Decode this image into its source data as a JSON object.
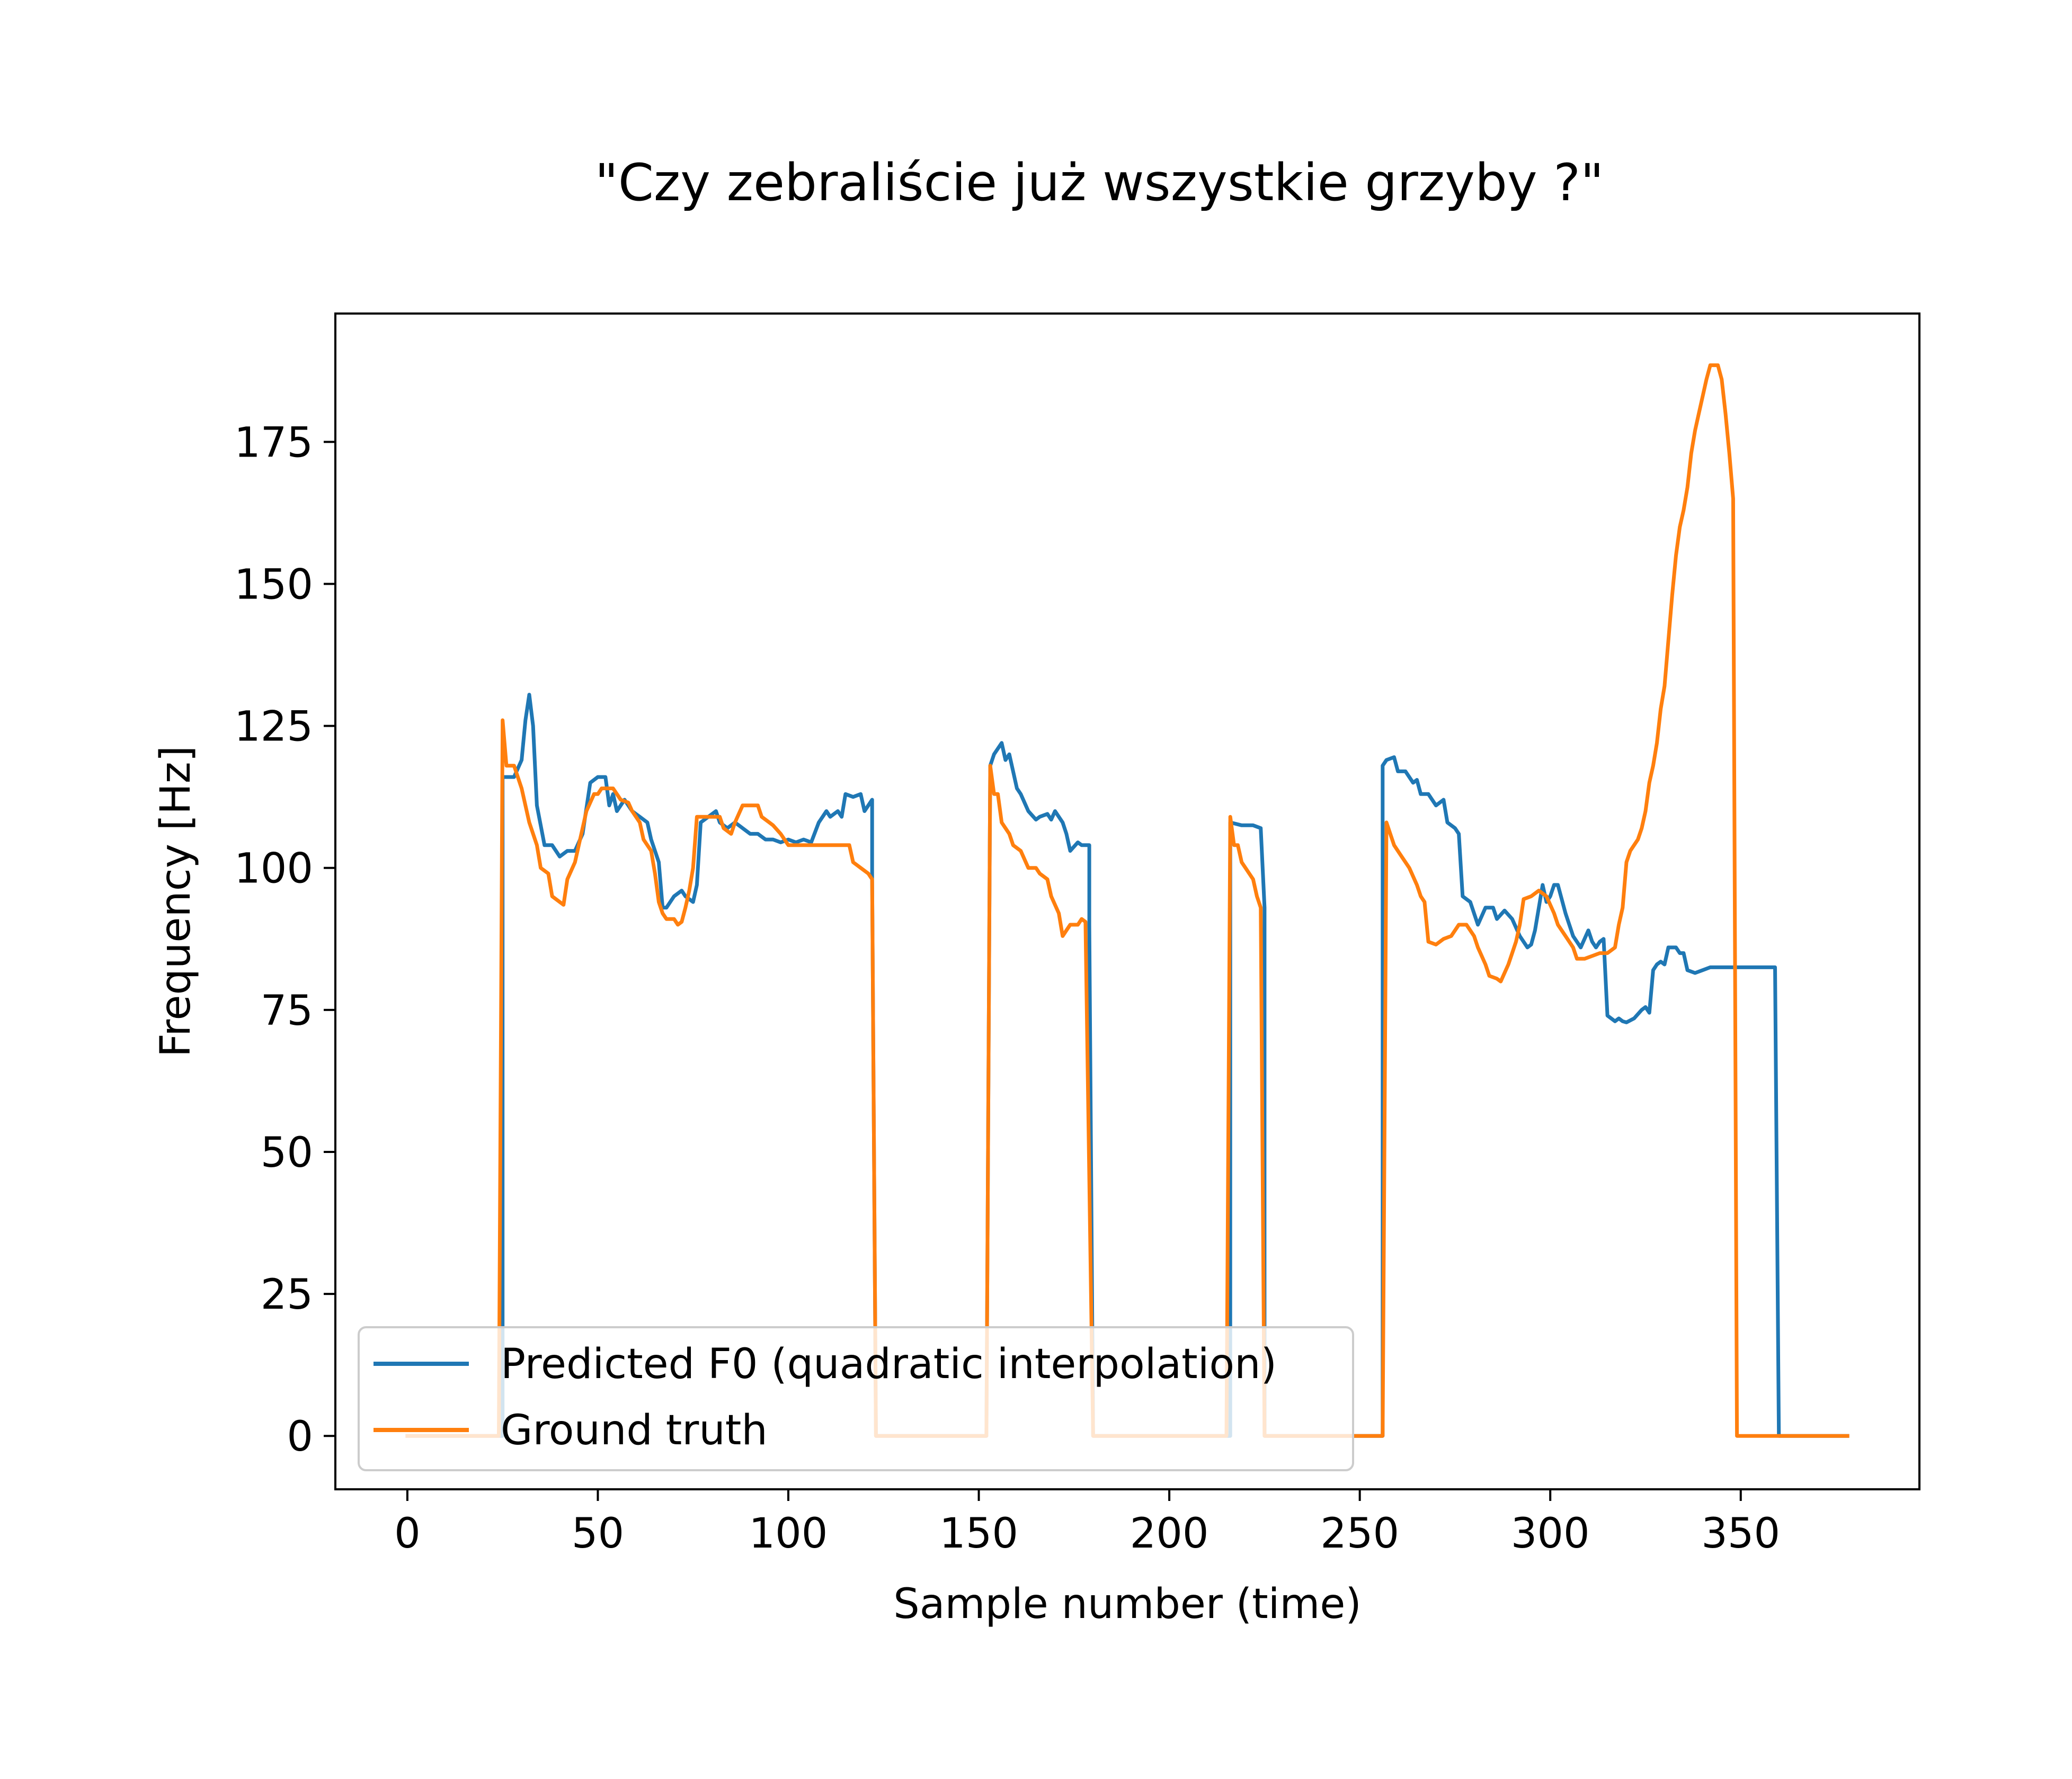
{
  "chart_data": {
    "type": "line",
    "title": "\"Czy zebraliście już wszystkie grzyby ?\"",
    "xlabel": "Sample number (time)",
    "ylabel": "Frequency [Hz]",
    "xlim": [
      -18.9,
      396.9
    ],
    "ylim": [
      -9.4,
      197.6
    ],
    "xticks": [
      0,
      50,
      100,
      150,
      200,
      250,
      300,
      350
    ],
    "yticks": [
      0,
      25,
      50,
      75,
      100,
      125,
      150,
      175
    ],
    "grid": false,
    "legend_position": "lower-left",
    "series": [
      {
        "name": "Predicted F0 (quadratic interpolation)",
        "color": "#1f77b4",
        "points": [
          [
            0,
            0
          ],
          [
            25,
            0
          ],
          [
            25,
            116
          ],
          [
            28,
            116
          ],
          [
            30,
            119
          ],
          [
            31,
            126
          ],
          [
            32,
            130.5
          ],
          [
            33,
            125
          ],
          [
            34,
            111
          ],
          [
            36,
            104
          ],
          [
            38,
            104
          ],
          [
            40,
            102
          ],
          [
            42,
            103
          ],
          [
            44,
            103
          ],
          [
            46,
            106
          ],
          [
            48,
            115
          ],
          [
            50,
            116
          ],
          [
            52,
            116
          ],
          [
            53,
            111
          ],
          [
            54,
            113
          ],
          [
            55,
            110
          ],
          [
            57,
            112
          ],
          [
            59,
            110
          ],
          [
            61,
            109
          ],
          [
            63,
            108
          ],
          [
            64,
            105
          ],
          [
            66,
            101
          ],
          [
            67,
            93
          ],
          [
            68,
            93
          ],
          [
            70,
            95
          ],
          [
            72,
            96
          ],
          [
            73,
            95
          ],
          [
            75,
            94
          ],
          [
            76,
            97
          ],
          [
            77,
            108
          ],
          [
            79,
            109
          ],
          [
            81,
            110
          ],
          [
            82,
            108
          ],
          [
            84,
            107
          ],
          [
            86,
            108
          ],
          [
            88,
            107
          ],
          [
            90,
            106
          ],
          [
            92,
            106
          ],
          [
            94,
            105
          ],
          [
            96,
            105
          ],
          [
            98,
            104.5
          ],
          [
            100,
            105
          ],
          [
            102,
            104.5
          ],
          [
            104,
            105
          ],
          [
            106,
            104.5
          ],
          [
            108,
            108
          ],
          [
            110,
            110
          ],
          [
            111,
            109
          ],
          [
            113,
            110
          ],
          [
            114,
            109
          ],
          [
            115,
            113
          ],
          [
            117,
            112.5
          ],
          [
            119,
            113
          ],
          [
            120,
            110
          ],
          [
            122,
            112
          ],
          [
            122,
            98
          ],
          [
            123,
            0
          ],
          [
            152,
            0
          ],
          [
            153,
            118
          ],
          [
            154,
            120
          ],
          [
            156,
            122
          ],
          [
            157,
            119
          ],
          [
            158,
            120
          ],
          [
            159,
            117
          ],
          [
            160,
            114
          ],
          [
            161,
            113
          ],
          [
            163,
            110
          ],
          [
            165,
            108.5
          ],
          [
            166,
            109
          ],
          [
            168,
            109.5
          ],
          [
            169,
            108.5
          ],
          [
            170,
            110
          ],
          [
            172,
            108
          ],
          [
            173,
            106
          ],
          [
            174,
            103
          ],
          [
            176,
            104.5
          ],
          [
            177,
            104
          ],
          [
            179,
            104
          ],
          [
            179,
            90
          ],
          [
            180,
            0
          ],
          [
            216,
            0
          ],
          [
            216,
            108
          ],
          [
            219,
            107.5
          ],
          [
            222,
            107.5
          ],
          [
            224,
            107
          ],
          [
            225,
            93
          ],
          [
            225,
            0
          ],
          [
            256,
            0
          ],
          [
            256,
            118
          ],
          [
            257,
            119
          ],
          [
            259,
            119.5
          ],
          [
            260,
            117
          ],
          [
            262,
            117
          ],
          [
            264,
            115
          ],
          [
            265,
            115.5
          ],
          [
            266,
            113
          ],
          [
            268,
            113
          ],
          [
            270,
            111
          ],
          [
            272,
            112
          ],
          [
            273,
            108
          ],
          [
            275,
            107
          ],
          [
            276,
            106
          ],
          [
            277,
            95
          ],
          [
            279,
            94
          ],
          [
            281,
            90
          ],
          [
            283,
            93
          ],
          [
            285,
            93
          ],
          [
            286,
            91
          ],
          [
            288,
            92.5
          ],
          [
            290,
            91
          ],
          [
            292,
            88
          ],
          [
            294,
            86
          ],
          [
            295,
            86.5
          ],
          [
            296,
            89
          ],
          [
            297,
            93
          ],
          [
            298,
            97
          ],
          [
            299,
            94
          ],
          [
            300,
            95
          ],
          [
            301,
            97
          ],
          [
            302,
            97
          ],
          [
            304,
            92
          ],
          [
            306,
            88
          ],
          [
            308,
            86
          ],
          [
            310,
            89
          ],
          [
            311,
            87
          ],
          [
            312,
            86
          ],
          [
            313,
            87
          ],
          [
            314,
            87.5
          ],
          [
            315,
            74
          ],
          [
            317,
            73
          ],
          [
            318,
            73.5
          ],
          [
            319,
            73
          ],
          [
            320,
            72.8
          ],
          [
            322,
            73.5
          ],
          [
            324,
            75
          ],
          [
            325,
            75.5
          ],
          [
            326,
            74.5
          ],
          [
            327,
            82
          ],
          [
            328,
            83
          ],
          [
            329,
            83.5
          ],
          [
            330,
            83
          ],
          [
            331,
            86
          ],
          [
            333,
            86
          ],
          [
            334,
            85
          ],
          [
            335,
            85
          ],
          [
            336,
            82
          ],
          [
            338,
            81.5
          ],
          [
            340,
            82
          ],
          [
            342,
            82.5
          ],
          [
            343,
            82.5
          ],
          [
            345,
            82.5
          ],
          [
            350,
            82.5
          ],
          [
            359,
            82.5
          ],
          [
            360,
            0
          ],
          [
            378,
            0
          ]
        ]
      },
      {
        "name": "Ground truth",
        "color": "#ff7f0e",
        "points": [
          [
            0,
            0
          ],
          [
            24,
            0
          ],
          [
            25,
            126
          ],
          [
            26,
            118
          ],
          [
            28,
            118
          ],
          [
            30,
            114
          ],
          [
            31,
            111
          ],
          [
            32,
            108
          ],
          [
            34,
            104
          ],
          [
            35,
            100
          ],
          [
            37,
            99
          ],
          [
            38,
            95
          ],
          [
            40,
            94
          ],
          [
            41,
            93.5
          ],
          [
            42,
            98
          ],
          [
            44,
            101
          ],
          [
            45,
            104
          ],
          [
            47,
            110
          ],
          [
            49,
            113
          ],
          [
            50,
            113
          ],
          [
            51,
            114
          ],
          [
            54,
            114
          ],
          [
            56,
            112
          ],
          [
            58,
            111.5
          ],
          [
            59,
            110
          ],
          [
            60,
            109
          ],
          [
            61,
            108
          ],
          [
            62,
            105
          ],
          [
            64,
            103
          ],
          [
            65,
            99
          ],
          [
            66,
            94
          ],
          [
            67,
            92
          ],
          [
            68,
            91
          ],
          [
            70,
            91
          ],
          [
            71,
            90
          ],
          [
            72,
            90.5
          ],
          [
            73,
            93
          ],
          [
            74,
            96
          ],
          [
            75,
            100
          ],
          [
            76,
            109
          ],
          [
            78,
            109
          ],
          [
            80,
            109
          ],
          [
            82,
            109
          ],
          [
            83,
            107
          ],
          [
            85,
            106
          ],
          [
            86,
            108
          ],
          [
            88,
            111
          ],
          [
            90,
            111
          ],
          [
            92,
            111
          ],
          [
            93,
            109
          ],
          [
            95,
            108
          ],
          [
            96,
            107.5
          ],
          [
            98,
            106
          ],
          [
            99,
            105
          ],
          [
            100,
            104
          ],
          [
            102,
            104
          ],
          [
            104,
            104
          ],
          [
            106,
            104
          ],
          [
            108,
            104
          ],
          [
            110,
            104
          ],
          [
            112,
            104
          ],
          [
            114,
            104
          ],
          [
            116,
            104
          ],
          [
            117,
            101
          ],
          [
            119,
            100
          ],
          [
            121,
            99
          ],
          [
            122,
            98
          ],
          [
            123,
            0
          ],
          [
            152,
            0
          ],
          [
            153,
            118
          ],
          [
            154,
            113
          ],
          [
            155,
            113
          ],
          [
            156,
            108
          ],
          [
            158,
            106
          ],
          [
            159,
            104
          ],
          [
            161,
            103
          ],
          [
            163,
            100
          ],
          [
            165,
            100
          ],
          [
            166,
            99
          ],
          [
            168,
            98
          ],
          [
            169,
            95
          ],
          [
            171,
            92
          ],
          [
            172,
            88
          ],
          [
            173,
            89
          ],
          [
            174,
            90
          ],
          [
            176,
            90
          ],
          [
            177,
            91
          ],
          [
            178,
            90.5
          ],
          [
            180,
            0
          ],
          [
            215,
            0
          ],
          [
            216,
            109
          ],
          [
            217,
            104
          ],
          [
            218,
            104
          ],
          [
            219,
            101
          ],
          [
            220,
            100
          ],
          [
            222,
            98
          ],
          [
            223,
            95
          ],
          [
            224,
            93
          ],
          [
            225,
            0
          ],
          [
            256,
            0
          ],
          [
            257,
            108
          ],
          [
            258,
            106
          ],
          [
            259,
            104
          ],
          [
            261,
            102
          ],
          [
            263,
            100
          ],
          [
            265,
            97
          ],
          [
            266,
            95
          ],
          [
            267,
            94
          ],
          [
            268,
            87
          ],
          [
            270,
            86.5
          ],
          [
            272,
            87.5
          ],
          [
            274,
            88
          ],
          [
            276,
            90
          ],
          [
            278,
            90
          ],
          [
            280,
            88
          ],
          [
            281,
            86
          ],
          [
            283,
            83
          ],
          [
            284,
            81
          ],
          [
            286,
            80.5
          ],
          [
            287,
            80
          ],
          [
            289,
            83
          ],
          [
            290,
            85
          ],
          [
            291,
            87
          ],
          [
            292,
            90
          ],
          [
            293,
            94.5
          ],
          [
            295,
            95
          ],
          [
            297,
            96
          ],
          [
            299,
            95
          ],
          [
            301,
            92
          ],
          [
            302,
            90
          ],
          [
            304,
            88
          ],
          [
            306,
            86
          ],
          [
            307,
            84
          ],
          [
            309,
            84
          ],
          [
            311,
            84.5
          ],
          [
            313,
            85
          ],
          [
            315,
            85
          ],
          [
            317,
            86
          ],
          [
            318,
            90
          ],
          [
            319,
            93
          ],
          [
            320,
            101
          ],
          [
            321,
            103
          ],
          [
            322,
            104
          ],
          [
            323,
            105
          ],
          [
            324,
            107
          ],
          [
            325,
            110
          ],
          [
            326,
            115
          ],
          [
            327,
            118
          ],
          [
            328,
            122
          ],
          [
            329,
            128
          ],
          [
            330,
            132
          ],
          [
            331,
            140
          ],
          [
            332,
            148
          ],
          [
            333,
            155
          ],
          [
            334,
            160
          ],
          [
            335,
            163
          ],
          [
            336,
            167
          ],
          [
            337,
            173
          ],
          [
            338,
            177
          ],
          [
            339,
            180
          ],
          [
            340,
            183
          ],
          [
            341,
            186
          ],
          [
            342,
            188.5
          ],
          [
            343,
            188.5
          ],
          [
            344,
            188.5
          ],
          [
            345,
            186
          ],
          [
            346,
            180
          ],
          [
            347,
            173
          ],
          [
            348,
            165
          ],
          [
            349,
            0
          ],
          [
            354,
            0
          ],
          [
            360,
            0
          ],
          [
            378,
            0
          ]
        ]
      }
    ]
  }
}
